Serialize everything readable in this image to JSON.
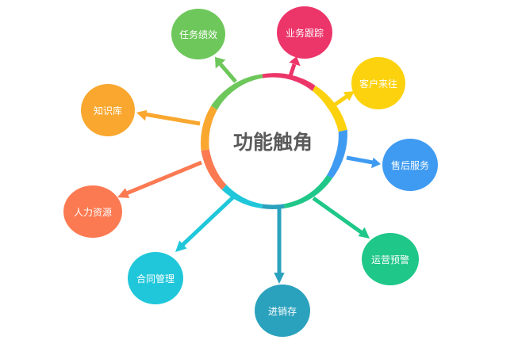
{
  "center": {
    "label": "功能触角"
  },
  "nodes": [
    {
      "id": "performance",
      "label": "任务绩效",
      "color": "#6DC75A"
    },
    {
      "id": "tracking",
      "label": "业务跟踪",
      "color": "#EC3569"
    },
    {
      "id": "clients",
      "label": "客户来往",
      "color": "#FCD20E"
    },
    {
      "id": "aftersales",
      "label": "售后服务",
      "color": "#3F9BF2"
    },
    {
      "id": "warning",
      "label": "运营预警",
      "color": "#1FC789"
    },
    {
      "id": "inventory",
      "label": "进销存",
      "color": "#2BA2BD"
    },
    {
      "id": "contracts",
      "label": "合同管理",
      "color": "#20C7DA"
    },
    {
      "id": "hr",
      "label": "人力资源",
      "color": "#FB7A52"
    },
    {
      "id": "knowledge",
      "label": "知识库",
      "color": "#F9A72F"
    }
  ]
}
